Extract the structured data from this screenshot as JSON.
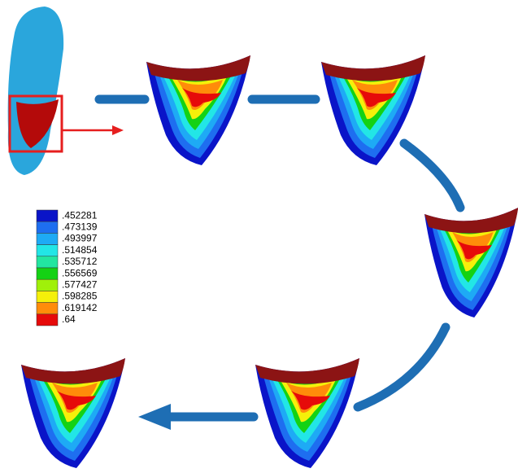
{
  "legend": {
    "items": [
      {
        "label": ".452281",
        "color": "#0a14c8"
      },
      {
        "label": ".473139",
        "color": "#1e6ef0"
      },
      {
        "label": ".493997",
        "color": "#1eaaf5"
      },
      {
        "label": ".514854",
        "color": "#22e6e6"
      },
      {
        "label": ".535712",
        "color": "#22e6a0"
      },
      {
        "label": ".556569",
        "color": "#14d214"
      },
      {
        "label": ".577427",
        "color": "#a0f00a"
      },
      {
        "label": ".598285",
        "color": "#f5f00a"
      },
      {
        "label": ".619142",
        "color": "#ff8c0a"
      },
      {
        "label": ".64",
        "color": "#e60a0a"
      }
    ]
  }
}
